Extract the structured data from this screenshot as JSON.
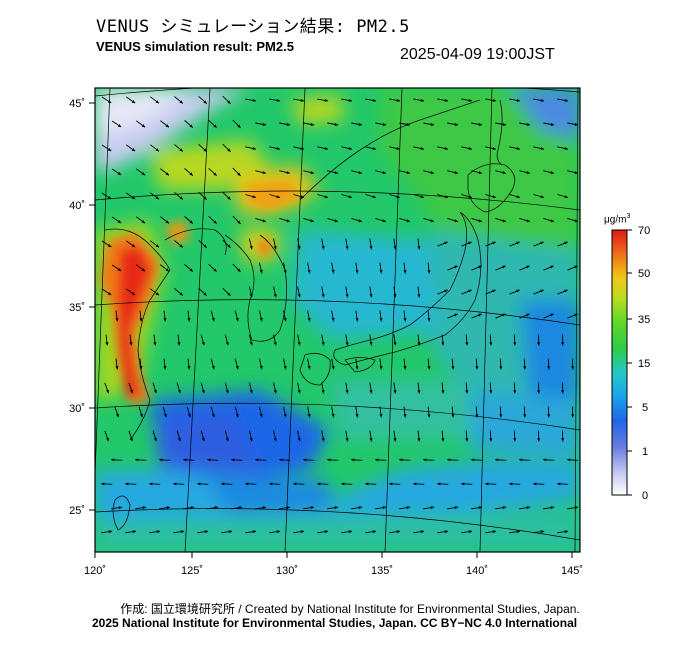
{
  "title_jp": "VENUS シミュレーション結果: PM2.5",
  "title_en": "VENUS simulation result: PM2.5",
  "timestamp": "2025-04-09 19:00JST",
  "map": {
    "lon_labels": [
      "120˚",
      "125˚",
      "130˚",
      "135˚",
      "140˚",
      "145˚"
    ],
    "lat_labels": [
      "45˚",
      "40˚",
      "35˚",
      "30˚",
      "25˚"
    ]
  },
  "colorbar": {
    "unit": "μg/m",
    "unit_sup": "3",
    "ticks": [
      "70",
      "50",
      "35",
      "15",
      "5",
      "1",
      "0"
    ],
    "colors": [
      "#ffffff",
      "#6a7ce0",
      "#1f66e8",
      "#1aa8e8",
      "#22c8c8",
      "#2ecc4a",
      "#8edc20",
      "#e8c818",
      "#f07818",
      "#e81818"
    ]
  },
  "credit_line1": "作成: 国立環境研究所 / Created by National Institute for Environmental Studies, Japan.",
  "credit_line2": "2025 National Institute for Environmental Studies, Japan. CC BY−NC 4.0 International"
}
